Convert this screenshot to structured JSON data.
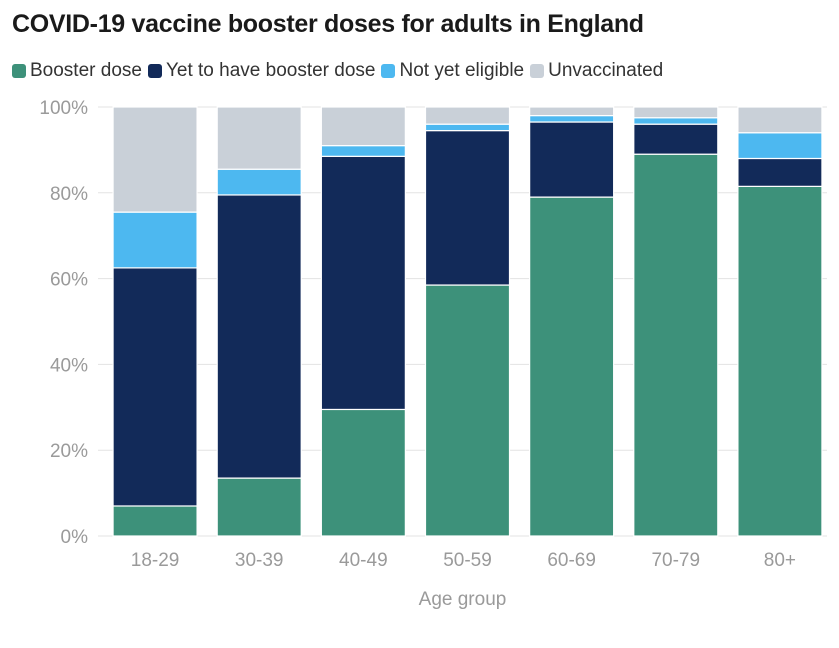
{
  "title": "COVID-19 vaccine booster doses for adults in England",
  "legend": [
    {
      "label": "Booster dose",
      "color": "#3d917a"
    },
    {
      "label": "Yet to have booster dose",
      "color": "#122a59"
    },
    {
      "label": "Not yet eligible",
      "color": "#4db8f0"
    },
    {
      "label": "Unvaccinated",
      "color": "#c9d0d8"
    }
  ],
  "chart_data": {
    "type": "bar",
    "stacked": true,
    "categories": [
      "18-29",
      "30-39",
      "40-49",
      "50-59",
      "60-69",
      "70-79",
      "80+"
    ],
    "series": [
      {
        "name": "Booster dose",
        "color": "#3d917a",
        "values": [
          7,
          13.5,
          29.5,
          58.5,
          79,
          89,
          81.5
        ]
      },
      {
        "name": "Yet to have booster dose",
        "color": "#122a59",
        "values": [
          55.5,
          66,
          59,
          36,
          17.5,
          7,
          6.5
        ]
      },
      {
        "name": "Not yet eligible",
        "color": "#4db8f0",
        "values": [
          13,
          6,
          2.5,
          1.5,
          1.5,
          1.5,
          6
        ]
      },
      {
        "name": "Unvaccinated",
        "color": "#c9d0d8",
        "values": [
          24.5,
          14.5,
          9,
          4,
          2,
          2.5,
          6
        ]
      }
    ],
    "xlabel": "Age group",
    "ylabel": "",
    "ylim": [
      0,
      100
    ],
    "yticks": [
      "0%",
      "20%",
      "40%",
      "60%",
      "80%",
      "100%"
    ],
    "grid": true,
    "legend_position": "top"
  }
}
